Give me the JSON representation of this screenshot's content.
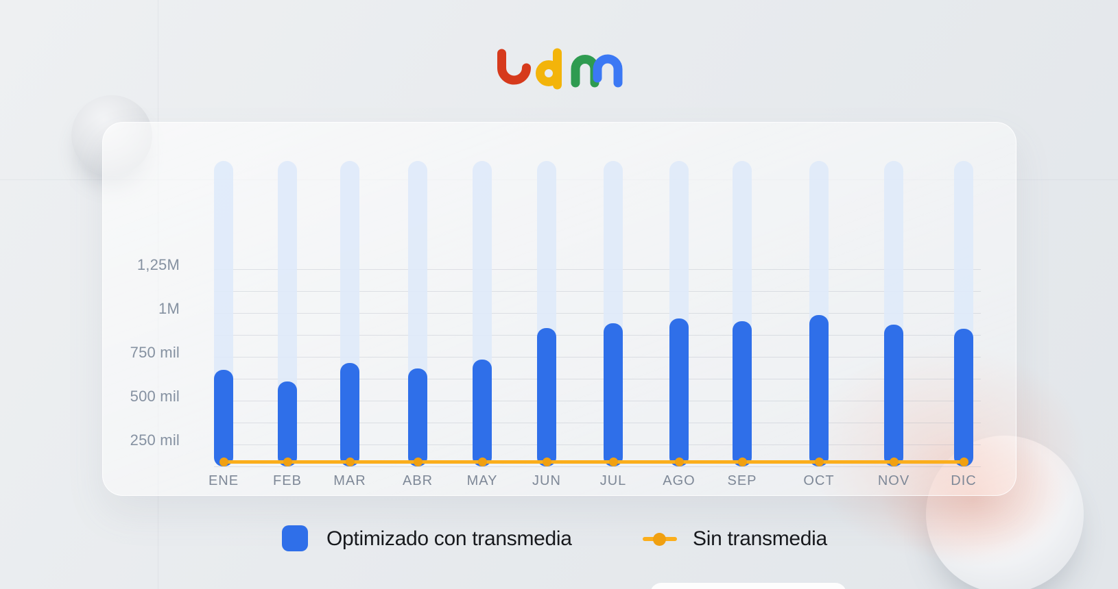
{
  "logo": {
    "text": "ldm",
    "colors": {
      "l": "#D63A1C",
      "d": "#F3B40A",
      "m_left": "#2E9B50",
      "m_right": "#3B78F4"
    }
  },
  "colors": {
    "bar_blue": "#2F6FE9",
    "track_blue": "#DEE9F9",
    "line_orange": "#FBAE1C",
    "dot_orange": "#F0A011",
    "axis_text": "#8591A1",
    "legend_text": "#17191D",
    "pink_glow": "#EEA692"
  },
  "chart_data": {
    "type": "bar",
    "subtype": "bar + flat reference line, rounded bars on light track columns",
    "title": "",
    "xlabel": "",
    "ylabel": "",
    "categories": [
      "ENE",
      "FEB",
      "MAR",
      "ABR",
      "MAY",
      "JUN",
      "JUL",
      "AGO",
      "SEP",
      "OCT",
      "NOV",
      "DIC"
    ],
    "series": [
      {
        "name": "Optimizado con transmedia",
        "type": "bar",
        "color": "#2F6FE9",
        "values": [
          675000,
          610000,
          715000,
          685000,
          735000,
          915000,
          940000,
          970000,
          955000,
          990000,
          935000,
          910000
        ]
      },
      {
        "name": "Sin transmedia",
        "type": "line",
        "color": "#FBAE1C",
        "point_color": "#F0A011",
        "values": [
          150000,
          150000,
          150000,
          150000,
          150000,
          150000,
          150000,
          150000,
          150000,
          150000,
          150000,
          150000
        ]
      }
    ],
    "yticks": [
      {
        "label": "1,25M",
        "value": 1250000
      },
      {
        "label": "1M",
        "value": 1000000
      },
      {
        "label": "750 mil",
        "value": 750000
      },
      {
        "label": "500 mil",
        "value": 500000
      },
      {
        "label": "250 mil",
        "value": 250000
      }
    ],
    "y_minor_grid_step": 125000,
    "ylim": [
      0,
      1250000
    ],
    "grid": "horizontal minor gridlines every 125 mil",
    "legend_position": "bottom-center"
  }
}
